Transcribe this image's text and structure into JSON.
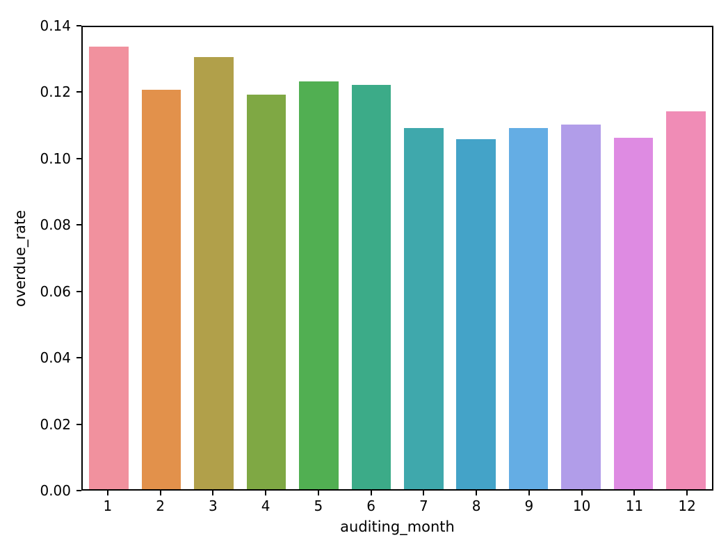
{
  "figure": {
    "background": "#ffffff",
    "text_color": "#000000"
  },
  "chart_data": {
    "type": "bar",
    "title": "",
    "xlabel": "auditing_month",
    "ylabel": "overdue_rate",
    "categories": [
      "1",
      "2",
      "3",
      "4",
      "5",
      "6",
      "7",
      "8",
      "9",
      "10",
      "11",
      "12"
    ],
    "values": [
      0.134,
      0.121,
      0.131,
      0.1195,
      0.1235,
      0.1225,
      0.1095,
      0.106,
      0.1095,
      0.1105,
      0.1065,
      0.1145
    ],
    "bar_colors": [
      "#f1919e",
      "#e2914b",
      "#b1a04a",
      "#7fa844",
      "#51af52",
      "#3cab88",
      "#3fa8ac",
      "#44a3c8",
      "#64ade4",
      "#b19de9",
      "#de8be2",
      "#f08cb6"
    ],
    "ylim": [
      0,
      0.14
    ],
    "yticks": [
      "0.00",
      "0.02",
      "0.04",
      "0.06",
      "0.08",
      "0.10",
      "0.12",
      "0.14"
    ],
    "grid": false,
    "legend": null
  }
}
